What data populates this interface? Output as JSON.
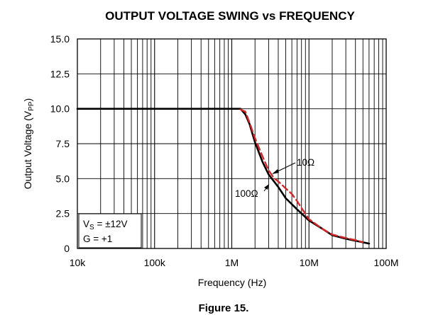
{
  "chart_data": {
    "type": "line",
    "title": "OUTPUT VOLTAGE SWING vs FREQUENCY",
    "xlabel": "Frequency (Hz)",
    "ylabel": {
      "main": "Output Voltage (V",
      "sub": "PP",
      "tail": ")"
    },
    "xscale": "log",
    "xlim": [
      10000,
      100000000
    ],
    "ylim": [
      0,
      15
    ],
    "x_ticks": [
      {
        "value": 10000,
        "label": "10k"
      },
      {
        "value": 100000,
        "label": "100k"
      },
      {
        "value": 1000000,
        "label": "1M"
      },
      {
        "value": 10000000,
        "label": "10M"
      },
      {
        "value": 100000000,
        "label": "100M"
      }
    ],
    "y_ticks": [
      {
        "value": 0,
        "label": "0"
      },
      {
        "value": 2.5,
        "label": "2.5"
      },
      {
        "value": 5,
        "label": "5.0"
      },
      {
        "value": 7.5,
        "label": "7.5"
      },
      {
        "value": 10,
        "label": "10.0"
      },
      {
        "value": 12.5,
        "label": "12.5"
      },
      {
        "value": 15,
        "label": "15.0"
      }
    ],
    "grid": true,
    "series": [
      {
        "name": "100Ω",
        "color": "#000000",
        "style": "solid",
        "x": [
          10000,
          1000000,
          1300000,
          1500000,
          1700000,
          2000000,
          2500000,
          3000000,
          4000000,
          5000000,
          7000000,
          10000000,
          15000000,
          20000000,
          30000000,
          40000000,
          60000000
        ],
        "y": [
          10,
          10,
          10,
          9.6,
          8.9,
          7.6,
          6.2,
          5.3,
          4.4,
          3.6,
          2.8,
          2.0,
          1.4,
          0.95,
          0.7,
          0.55,
          0.35
        ]
      },
      {
        "name": "10Ω",
        "color": "#d62728",
        "style": "dashed",
        "x": [
          1300000,
          1500000,
          1700000,
          2000000,
          2500000,
          3000000,
          3500000,
          4000000,
          5000000,
          6000000,
          7000000,
          8000000,
          10000000,
          15000000,
          20000000,
          30000000,
          40000000,
          50000000
        ],
        "y": [
          9.95,
          9.8,
          9.0,
          7.9,
          6.6,
          5.6,
          5.05,
          4.8,
          4.3,
          3.9,
          3.4,
          2.9,
          2.1,
          1.4,
          1.0,
          0.75,
          0.6,
          0.45
        ]
      }
    ],
    "annotations": [
      {
        "text": "10Ω",
        "points_to_series": "10Ω"
      },
      {
        "text": "100Ω",
        "points_to_series": "100Ω"
      }
    ],
    "legend_box": {
      "position": "bottom-left",
      "lines": [
        {
          "main": "V",
          "sub": "S",
          "tail": " = ±12V"
        },
        {
          "main": "G = +1",
          "sub": "",
          "tail": ""
        }
      ]
    }
  },
  "caption": "Figure 15."
}
